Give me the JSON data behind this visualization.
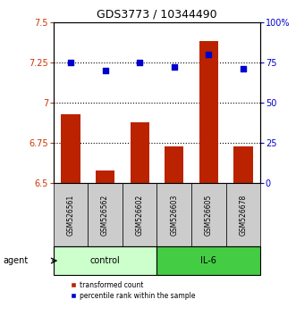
{
  "title": "GDS3773 / 10344490",
  "samples": [
    "GSM526561",
    "GSM526562",
    "GSM526602",
    "GSM526603",
    "GSM526605",
    "GSM526678"
  ],
  "bar_values": [
    6.93,
    6.58,
    6.88,
    6.73,
    7.38,
    6.73
  ],
  "dot_values_pct": [
    75,
    70,
    75,
    72,
    80,
    71
  ],
  "ylim_left": [
    6.5,
    7.5
  ],
  "ylim_right": [
    0,
    100
  ],
  "yticks_left": [
    6.5,
    6.75,
    7.0,
    7.25,
    7.5
  ],
  "ytick_labels_left": [
    "6.5",
    "6.75",
    "7",
    "7.25",
    "7.5"
  ],
  "yticks_right": [
    0,
    25,
    50,
    75,
    100
  ],
  "ytick_labels_right": [
    "0",
    "25",
    "50",
    "75",
    "100%"
  ],
  "hlines": [
    6.75,
    7.0,
    7.25
  ],
  "bar_color": "#bb2200",
  "dot_color": "#0000cc",
  "control_label": "control",
  "il6_label": "IL-6",
  "agent_label": "agent",
  "legend_bar_label": "transformed count",
  "legend_dot_label": "percentile rank within the sample",
  "control_color": "#ccffcc",
  "il6_color": "#44cc44",
  "xlabel_tick_bg": "#cccccc",
  "title_fontsize": 9
}
